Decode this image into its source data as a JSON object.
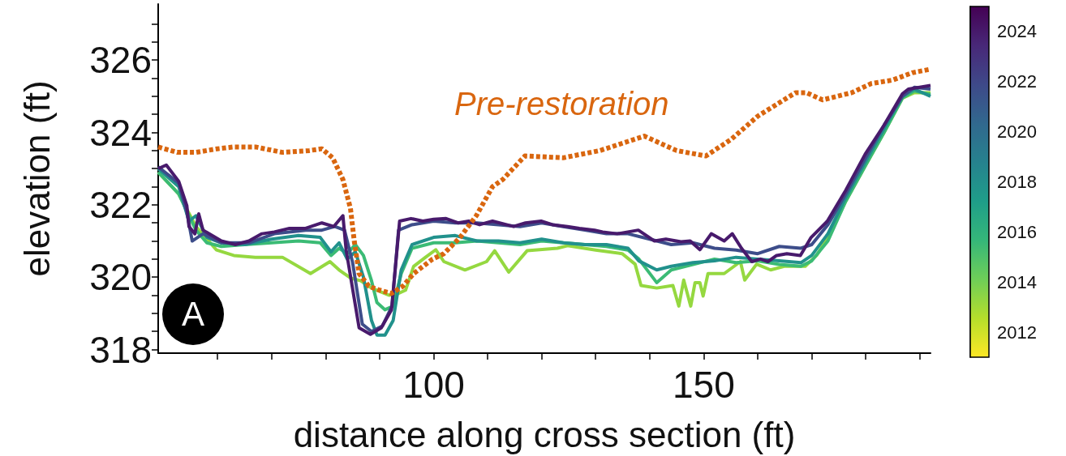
{
  "chart_data": {
    "type": "line",
    "xlabel": "distance along cross section (ft)",
    "ylabel": "elevation (ft)",
    "annotations": [
      "A"
    ],
    "xlim": [
      49,
      192
    ],
    "xticks": [
      {
        "value": 60,
        "label": null
      },
      {
        "value": 70,
        "label": null
      },
      {
        "value": 80,
        "label": null
      },
      {
        "value": 90,
        "label": null
      },
      100,
      {
        "value": 110,
        "label": null
      },
      {
        "value": 120,
        "label": null
      },
      {
        "value": 130,
        "label": null
      },
      {
        "value": 140,
        "label": null
      },
      150,
      {
        "value": 160,
        "label": null
      },
      {
        "value": 170,
        "label": null
      },
      {
        "value": 180,
        "label": null
      },
      {
        "value": 190,
        "label": null
      }
    ],
    "ylim": [
      317.9,
      327.55
    ],
    "yticks": [
      318,
      {
        "value": 318.5,
        "label": null
      },
      {
        "value": 319,
        "label": null
      },
      {
        "value": 319.5,
        "label": null
      },
      320,
      {
        "value": 320.5,
        "label": null
      },
      {
        "value": 321,
        "label": null
      },
      {
        "value": 321.5,
        "label": null
      },
      322,
      {
        "value": 322.5,
        "label": null
      },
      {
        "value": 323,
        "label": null
      },
      {
        "value": 323.5,
        "label": null
      },
      324,
      {
        "value": 324.5,
        "label": null
      },
      {
        "value": 325,
        "label": null
      },
      {
        "value": 325.5,
        "label": null
      },
      326,
      {
        "value": 326.5,
        "label": null
      },
      {
        "value": 327,
        "label": null
      }
    ],
    "clim": [
      2011,
      2025
    ],
    "cticks": [
      2012,
      2014,
      2016,
      2018,
      2020,
      2022,
      2024
    ],
    "grid": false,
    "legend": false,
    "marker": "none",
    "series": [
      {
        "color": "#95d840",
        "x": [
          49,
          52.8,
          56,
          59.8,
          63,
          67,
          72,
          77.2,
          80.8,
          82.5,
          84.7,
          86.5,
          88.5,
          91.8,
          93.5,
          94.8,
          96.3,
          98.5,
          100.4,
          101.9,
          105.8,
          109.8,
          111.3,
          113.9,
          117.3,
          122.9,
          124.8,
          130,
          134.9,
          137.3,
          138.4,
          141.3,
          144.3,
          145.4,
          146.3,
          147.6,
          148.4,
          149.3,
          149.9,
          150.8,
          153.8,
          156.8,
          157.6,
          159.8,
          162.4,
          164.9,
          168.8,
          170.9,
          173,
          176.3,
          180,
          183.4,
          186.8,
          189,
          192
        ],
        "values": [
          322.9,
          322.3,
          321.4,
          320.75,
          320.6,
          320.55,
          320.55,
          320.1,
          320.43,
          320.2,
          319.97,
          319.9,
          319.7,
          319.5,
          319.55,
          319.64,
          320.3,
          320.55,
          320.76,
          320.43,
          320.2,
          320.43,
          320.73,
          320.14,
          320.73,
          320.8,
          320.87,
          320.75,
          320.65,
          320.36,
          319.77,
          319.7,
          319.77,
          319.2,
          319.92,
          319.2,
          319.85,
          319.85,
          319.48,
          320.1,
          320.1,
          320.43,
          319.92,
          320.36,
          320.2,
          320.3,
          320.3,
          320.6,
          321.1,
          322.1,
          323.1,
          324.0,
          324.95,
          325.1,
          325.1
        ]
      },
      {
        "color": "#3bbb75",
        "x": [
          49,
          52.8,
          54.7,
          56,
          58,
          60.7,
          65,
          70,
          75,
          79,
          81,
          82.5,
          84,
          85.5,
          87,
          88.5,
          89.5,
          91,
          92.5,
          94,
          96,
          100,
          104,
          108,
          112,
          116,
          120,
          124,
          128,
          132,
          136,
          138,
          141.3,
          144,
          148,
          152,
          156,
          160,
          164,
          168,
          170,
          173,
          176.3,
          180,
          183.4,
          186.8,
          189,
          192
        ],
        "values": [
          322.9,
          322.3,
          321.7,
          321.3,
          320.95,
          320.85,
          320.9,
          320.95,
          321.0,
          320.95,
          320.6,
          320.8,
          320.65,
          320.9,
          320.6,
          319.9,
          319.3,
          319.1,
          319.2,
          320.1,
          320.8,
          320.95,
          320.95,
          321.0,
          320.95,
          320.9,
          321.0,
          320.95,
          320.9,
          320.85,
          320.75,
          320.5,
          319.85,
          320.2,
          320.35,
          320.5,
          320.4,
          320.45,
          320.35,
          320.3,
          320.45,
          321.0,
          322.1,
          323.1,
          324.0,
          324.95,
          325.15,
          325.05
        ]
      },
      {
        "color": "#21918c",
        "x": [
          49,
          52.8,
          54.7,
          56,
          58,
          60.7,
          65,
          70,
          75,
          79,
          81,
          82.5,
          84,
          85.5,
          87,
          88.5,
          89.5,
          91,
          92.5,
          94,
          96,
          100,
          104,
          108,
          112,
          116,
          120,
          124,
          128,
          132,
          136,
          138,
          141.3,
          144,
          148,
          152,
          156,
          160,
          164,
          168,
          170,
          173,
          176.3,
          180,
          183.4,
          186.8,
          189,
          192
        ],
        "values": [
          323.0,
          322.5,
          321.55,
          321.7,
          321.1,
          320.95,
          320.9,
          321.05,
          321.15,
          321.1,
          320.7,
          320.95,
          320.5,
          320.7,
          320.0,
          318.8,
          318.4,
          318.4,
          318.8,
          320.2,
          320.9,
          321.1,
          321.15,
          321.0,
          321.0,
          320.95,
          321.05,
          320.95,
          320.9,
          320.9,
          320.8,
          320.45,
          320.2,
          320.3,
          320.4,
          320.45,
          320.55,
          320.5,
          320.45,
          320.4,
          320.6,
          321.2,
          322.2,
          323.2,
          324.1,
          325.0,
          325.2,
          325.0
        ]
      },
      {
        "color": "#3d4d8a",
        "x": [
          49,
          52.8,
          54.3,
          55.3,
          57.3,
          60.7,
          65.8,
          70.5,
          76.3,
          79.3,
          81.7,
          83.5,
          85,
          86.8,
          88.5,
          90.5,
          92.3,
          93.5,
          96,
          100,
          104,
          108,
          112,
          116,
          120,
          124,
          128,
          132,
          136,
          140,
          144,
          148,
          152,
          156,
          160,
          164,
          168,
          170,
          173,
          176.3,
          180,
          183.4,
          186.8,
          189,
          192
        ],
        "values": [
          323.05,
          322.6,
          321.8,
          321.0,
          321.2,
          320.95,
          320.95,
          321.2,
          321.3,
          321.3,
          321.4,
          321.3,
          320.4,
          318.7,
          318.5,
          318.65,
          319.2,
          321.3,
          321.45,
          321.55,
          321.5,
          321.5,
          321.45,
          321.4,
          321.5,
          321.4,
          321.3,
          321.2,
          321.2,
          321.05,
          320.9,
          320.95,
          320.8,
          320.75,
          320.65,
          320.85,
          320.8,
          320.9,
          321.45,
          322.3,
          323.3,
          324.2,
          325.0,
          325.25,
          325.2
        ]
      },
      {
        "color": "#481a6c",
        "x": [
          49,
          50.5,
          52.8,
          54.3,
          54.7,
          55.8,
          56.5,
          57.3,
          60.7,
          63.3,
          65.8,
          68.2,
          70.5,
          73.3,
          76.3,
          79.3,
          81.5,
          83.2,
          83.8,
          86.2,
          88.3,
          90.3,
          92.2,
          93.7,
          95.8,
          98,
          100,
          102.3,
          104.5,
          106.5,
          108.5,
          110.9,
          114.8,
          117,
          119.9,
          122,
          124.8,
          127,
          129.8,
          131.3,
          134,
          137.9,
          140.9,
          143,
          145.8,
          147.5,
          149.3,
          151.4,
          153.8,
          155.3,
          157,
          158.9,
          160.5,
          161.9,
          163.5,
          165.4,
          167.9,
          169.9,
          172.9,
          176.3,
          179.9,
          183.4,
          186.8,
          187.9,
          190,
          192
        ],
        "values": [
          323.0,
          323.1,
          322.65,
          321.98,
          321.4,
          321.2,
          321.75,
          321.3,
          321.0,
          320.9,
          321.0,
          321.2,
          321.25,
          321.35,
          321.35,
          321.5,
          321.4,
          321.7,
          320.75,
          318.6,
          318.42,
          318.6,
          319.1,
          321.55,
          321.62,
          321.55,
          321.6,
          321.62,
          321.5,
          321.55,
          321.45,
          321.55,
          321.4,
          321.5,
          321.55,
          321.45,
          321.4,
          321.35,
          321.3,
          321.25,
          321.2,
          321.3,
          321.0,
          321.05,
          320.98,
          321.0,
          320.76,
          321.2,
          321.0,
          321.2,
          320.8,
          320.43,
          320.5,
          320.43,
          320.6,
          320.65,
          320.6,
          321.1,
          321.55,
          322.4,
          323.4,
          324.2,
          325.07,
          325.2,
          325.25,
          325.3
        ]
      },
      {
        "name": "Pre-restoration",
        "color": "#d9660f",
        "line_style": "dashed",
        "x": [
          49,
          52.5,
          56,
          60,
          63,
          67,
          72,
          77,
          79.3,
          81.3,
          83.2,
          84.6,
          85.3,
          86.2,
          88,
          89.8,
          92.2,
          94.3,
          96.3,
          99.8,
          101.9,
          104.9,
          107.9,
          110.9,
          112.8,
          116.9,
          124,
          130.8,
          139,
          145,
          150.4,
          155,
          160,
          167,
          169,
          172,
          177.4,
          181,
          185,
          188.6,
          192
        ],
        "values": [
          323.6,
          323.45,
          323.45,
          323.55,
          323.6,
          323.6,
          323.45,
          323.5,
          323.55,
          323.3,
          322.7,
          321.9,
          321.0,
          320.1,
          319.75,
          319.65,
          319.55,
          319.75,
          320.1,
          320.5,
          320.65,
          321.1,
          321.7,
          322.5,
          322.7,
          323.35,
          323.3,
          323.5,
          323.9,
          323.5,
          323.35,
          323.8,
          324.45,
          325.1,
          325.1,
          324.9,
          325.1,
          325.35,
          325.45,
          325.65,
          325.75
        ]
      }
    ]
  }
}
